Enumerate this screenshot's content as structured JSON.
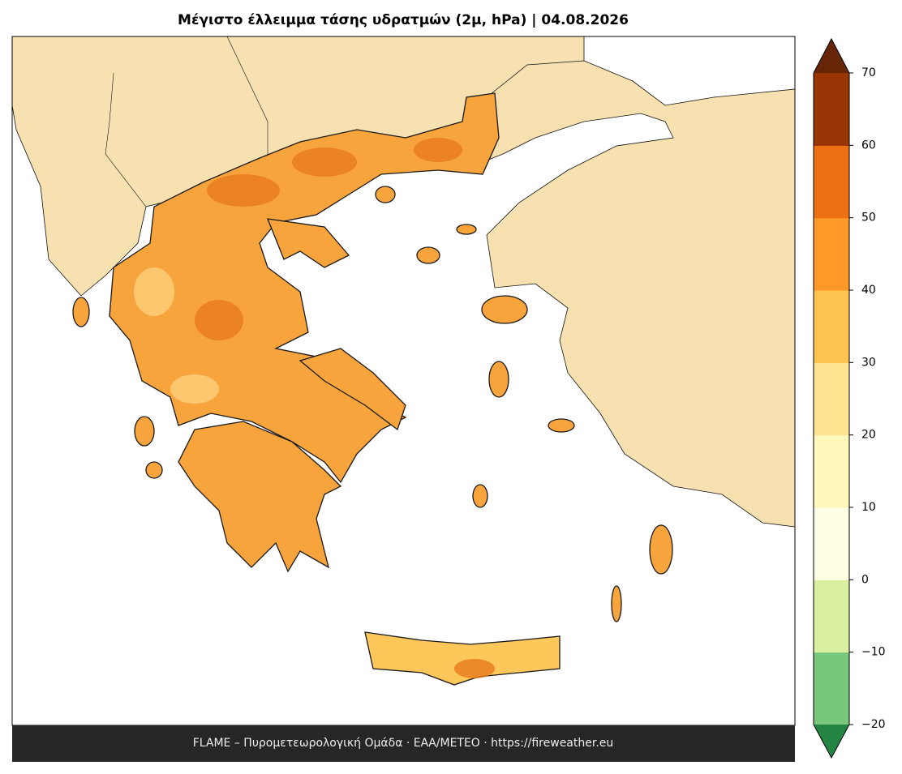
{
  "map": {
    "title": "Μέγιστο έλλειμμα τάσης υδρατμών (2μ, hPa)  |  04.08.2026",
    "footer": "FLAME – Πυρομετεωρολογική Ομάδα · ΕΑΑ/METEO · https://fireweather.eu",
    "colorbar": {
      "ticks": [
        {
          "value": -20,
          "label": "−20"
        },
        {
          "value": -10,
          "label": "−10"
        },
        0,
        10,
        20,
        30,
        40,
        50,
        60,
        70
      ],
      "lim": [
        -20,
        70
      ],
      "colors": [
        "#78c679",
        "#d9f0a3",
        "#ffffe5",
        "#fff7bc",
        "#fee391",
        "#fec44f",
        "#fe9929",
        "#ec7014",
        "#993404"
      ],
      "under_color": "#238443",
      "over_color": "#662506"
    }
  }
}
